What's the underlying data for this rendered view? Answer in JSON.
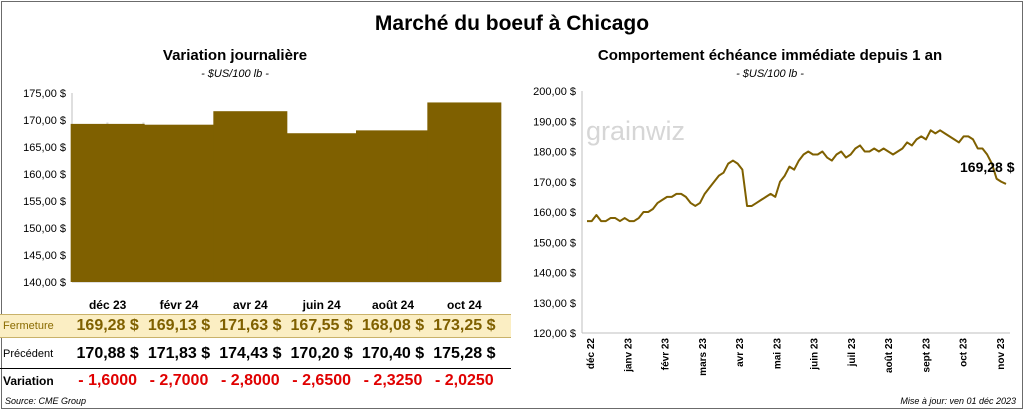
{
  "main_title": "Marché du boeuf à Chicago",
  "left": {
    "title": "Variation  journalière",
    "subtitle": "- $US/100 lb -",
    "row_labels": {
      "close": "Fermeture",
      "prev": "Précédent",
      "var": "Variation"
    },
    "close_str": [
      "169,28  $",
      "169,13  $",
      "171,63  $",
      "167,55  $",
      "168,08  $",
      "173,25  $"
    ],
    "prev_str": [
      "170,88  $",
      "171,83  $",
      "174,43  $",
      "170,20  $",
      "170,40  $",
      "175,28  $"
    ],
    "var_str": [
      "- 1,6000",
      "- 2,7000",
      "- 2,8000",
      "- 2,6500",
      "- 2,3250",
      "- 2,0250"
    ]
  },
  "right": {
    "title": "Comportement  échéance  immédiate  depuis  1  an",
    "subtitle": "- $US/100 lb -",
    "last_label": "169,28 $"
  },
  "watermark": "grainwiz",
  "source": "Source: CME Group",
  "update": "Mise à jour: ven 01 déc 2023",
  "colors": {
    "bar": "#7f6000",
    "line": "#7f6000",
    "close_bg": "#fbeec3",
    "negative": "#e00000"
  },
  "chart_data": [
    {
      "type": "bar",
      "categories": [
        "déc 23",
        "févr 24",
        "avr 24",
        "juin 24",
        "août 24",
        "oct 24"
      ],
      "values": [
        169.28,
        169.13,
        171.63,
        167.55,
        168.08,
        173.25
      ],
      "ylim": [
        140,
        175
      ],
      "yticks": [
        "140,00 $",
        "145,00 $",
        "150,00 $",
        "155,00 $",
        "160,00 $",
        "165,00 $",
        "170,00 $",
        "175,00 $"
      ]
    },
    {
      "type": "line",
      "x_labels": [
        "déc 22",
        "janv 23",
        "févr 23",
        "mars 23",
        "avr 23",
        "mai 23",
        "juin 23",
        "juil 23",
        "août 23",
        "sept 23",
        "oct 23",
        "nov 23"
      ],
      "ylim": [
        120,
        200
      ],
      "yticks": [
        "120,00 $",
        "130,00 $",
        "140,00 $",
        "150,00 $",
        "160,00 $",
        "170,00 $",
        "180,00 $",
        "190,00 $",
        "200,00 $"
      ],
      "values": [
        157,
        157,
        159,
        157,
        157,
        158,
        158,
        157,
        158,
        157,
        157,
        158,
        160,
        160,
        161,
        163,
        164,
        165,
        165,
        166,
        166,
        165,
        163,
        162,
        163,
        166,
        168,
        170,
        172,
        173,
        176,
        177,
        176,
        174,
        162,
        162,
        163,
        164,
        165,
        166,
        165,
        170,
        172,
        175,
        174,
        177,
        179,
        180,
        179,
        179,
        180,
        178,
        177,
        179,
        180,
        178,
        179,
        181,
        182,
        180,
        180,
        181,
        180,
        181,
        180,
        179,
        180,
        181,
        183,
        182,
        184,
        185,
        184,
        187,
        186,
        187,
        186,
        185,
        184,
        183,
        185,
        185,
        184,
        181,
        181,
        179,
        176,
        171,
        170,
        169.28
      ]
    }
  ]
}
